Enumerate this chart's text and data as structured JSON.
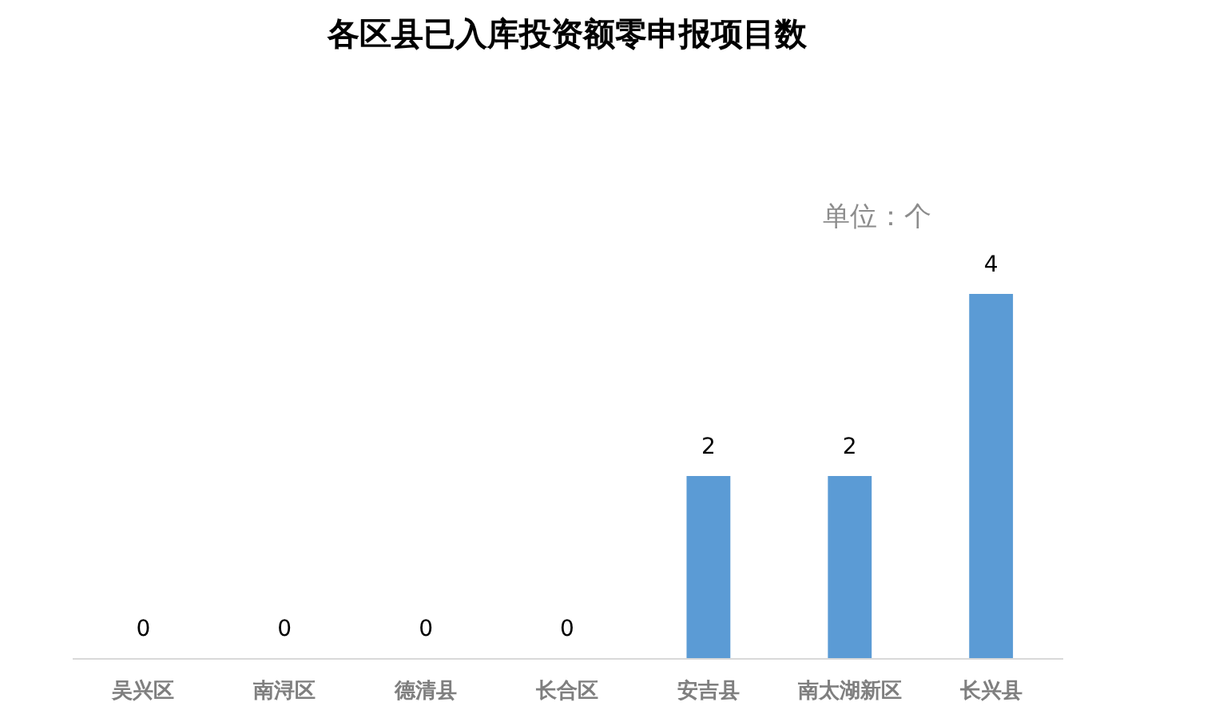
{
  "chart_data": {
    "type": "bar",
    "title": "各区县已入库投资额零申报项目数",
    "categories": [
      "吴兴区",
      "南浔区",
      "德清县",
      "长合区",
      "安吉县",
      "南太湖新区",
      "长兴县"
    ],
    "values": [
      0,
      0,
      0,
      0,
      2,
      2,
      4
    ],
    "color": "#5b9bd5",
    "data_labels": true,
    "grid": false,
    "annotations": [
      "单位：个"
    ]
  }
}
